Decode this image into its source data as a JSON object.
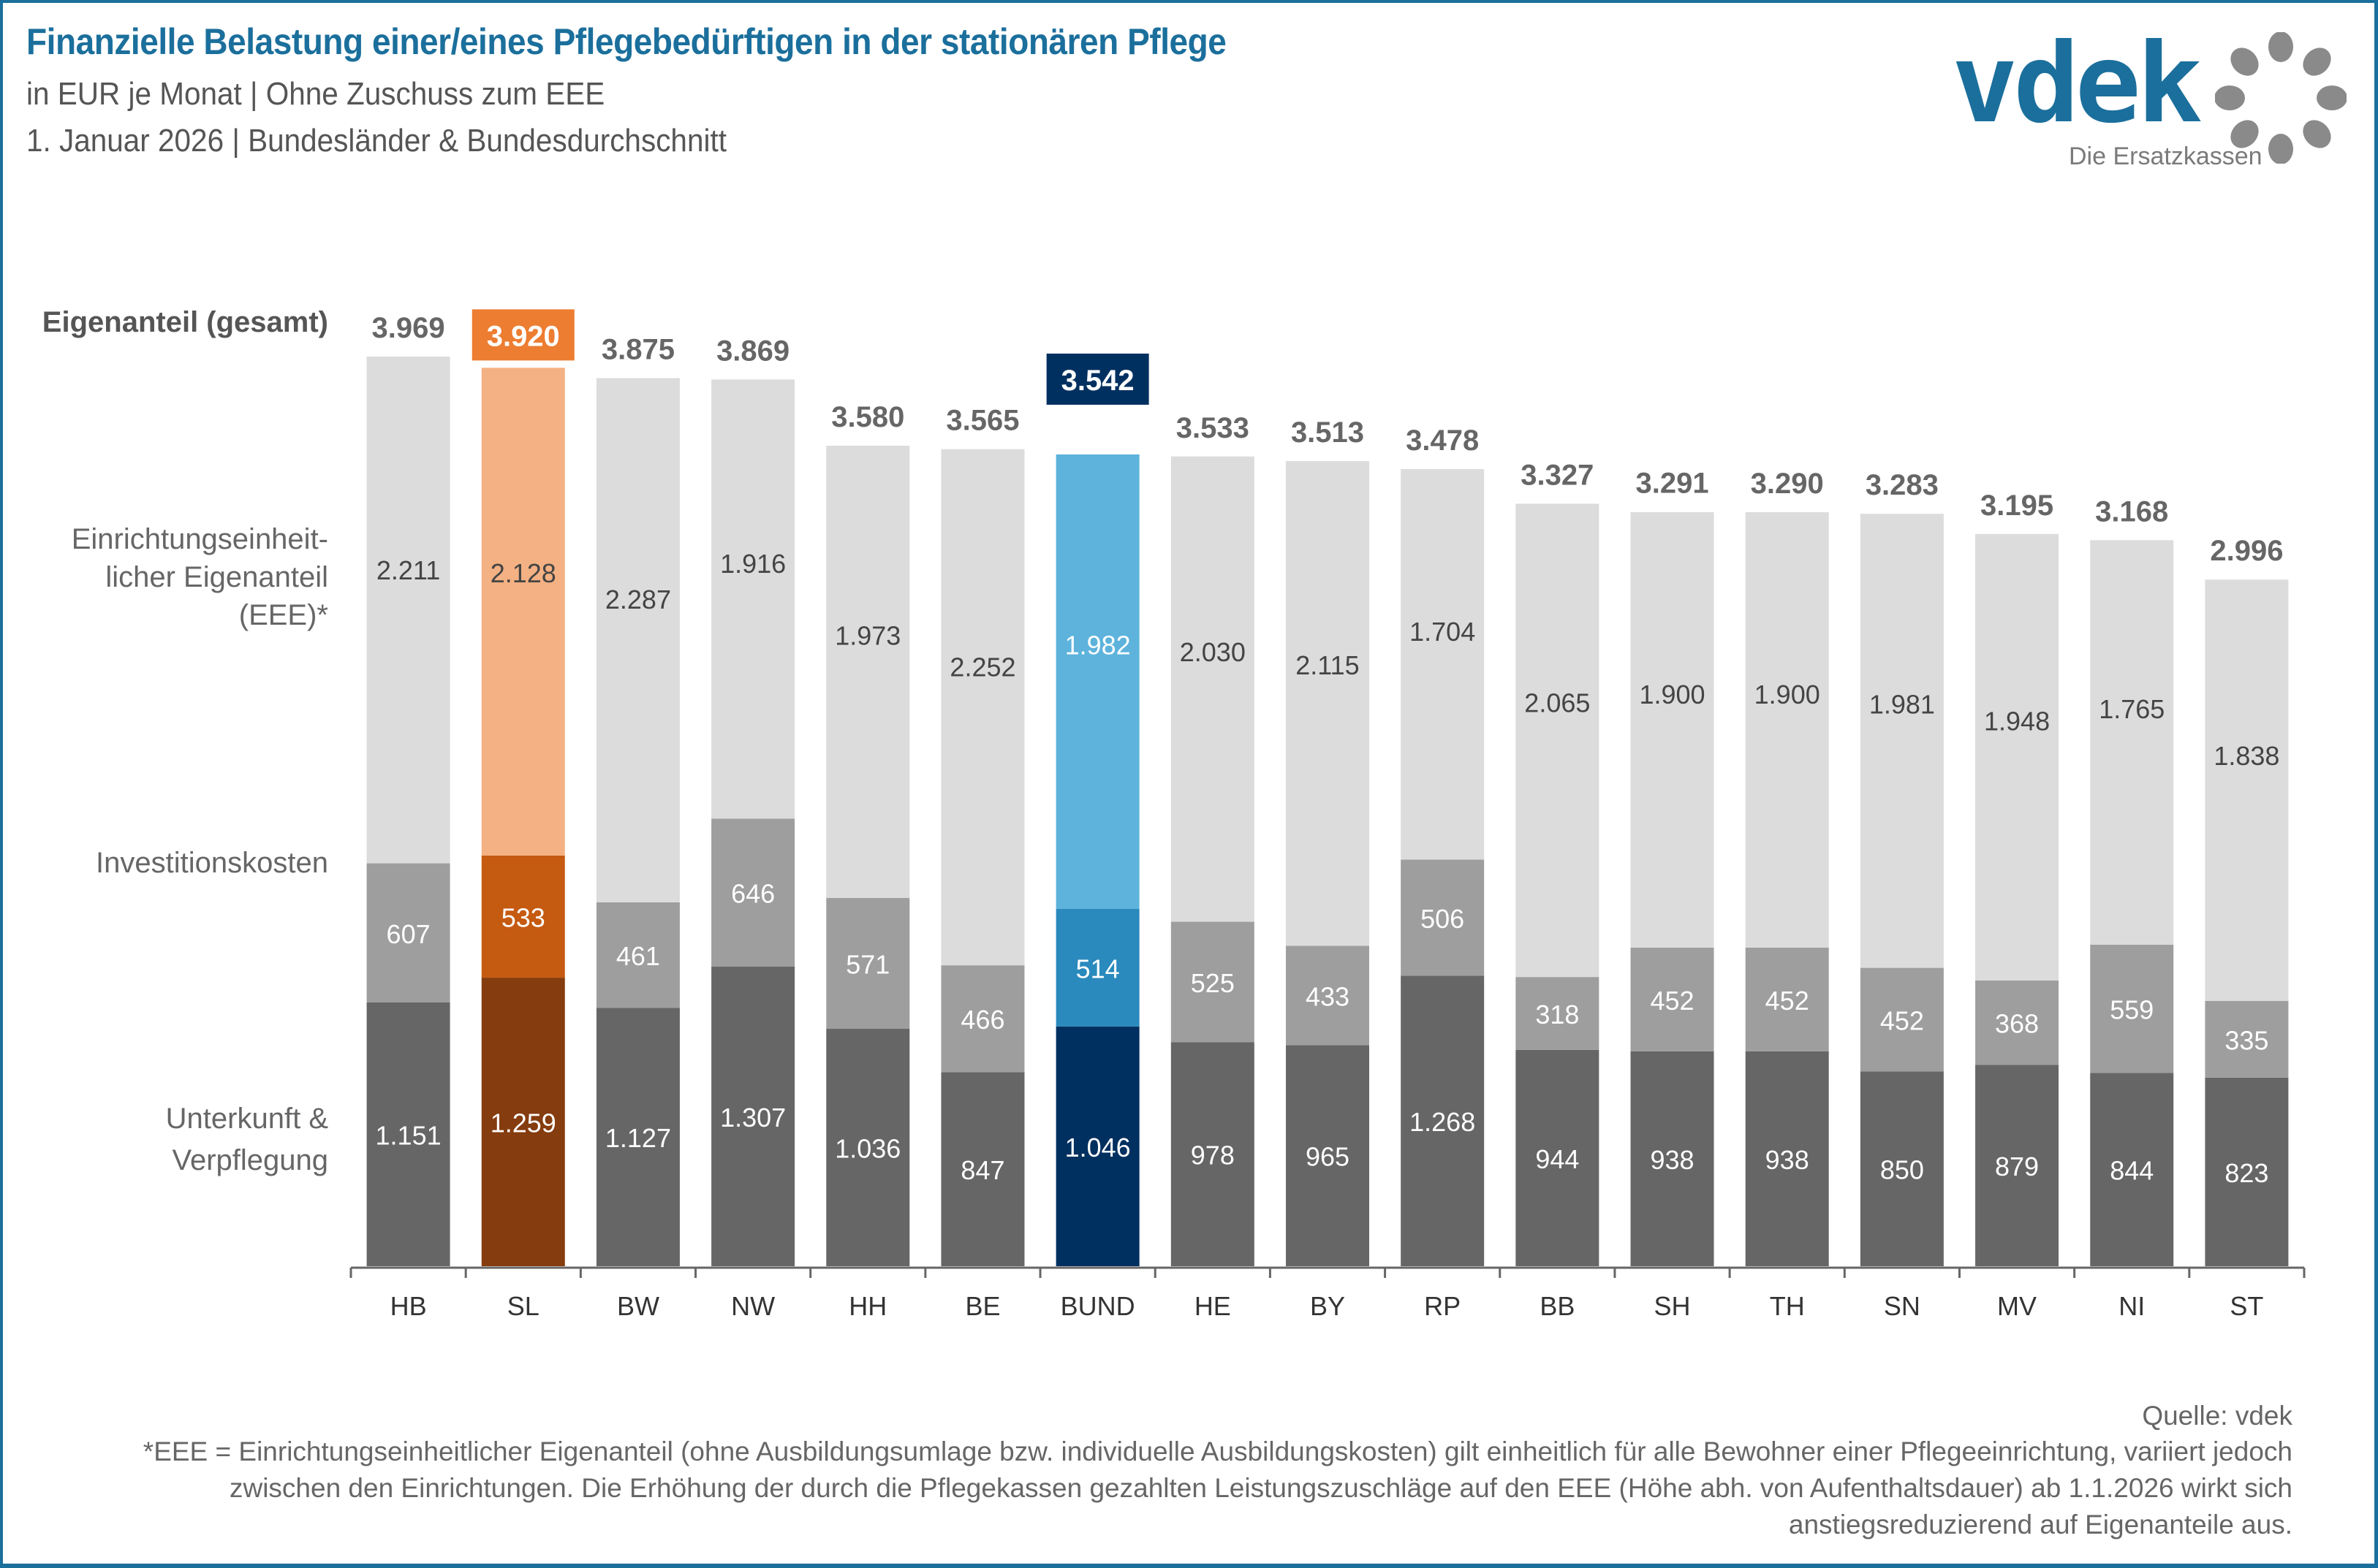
{
  "header": {
    "title": "Finanzielle Belastung einer/eines Pflegebedürftigen in der stationären Pflege",
    "subtitle_1": "in EUR je Monat | Ohne Zuschuss zum EEE",
    "subtitle_2": "1. Januar 2026 | Bundesländer & Bundesdurchschnitt"
  },
  "logo": {
    "wordmark": "vdek",
    "tagline": "Die Ersatzkassen",
    "icon": "ring-of-dots-icon"
  },
  "row_labels": {
    "total": "Eigenanteil (gesamt)",
    "eee_line1": "Einrichtungseinheit-",
    "eee_line2": "licher Eigenanteil",
    "eee_line3": "(EEE)*",
    "invest": "Investitionskosten",
    "uv_line1": "Unterkunft &",
    "uv_line2": "Verpflegung"
  },
  "colors": {
    "brand": "#1b6f9c",
    "uv": "#666666",
    "invest": "#9e9e9e",
    "eee": "#dcdcdc",
    "highlight_sl": {
      "uv": "#853c0e",
      "invest": "#c55a11",
      "eee": "#f4b183",
      "total_box": "#ed7d31"
    },
    "highlight_bund": {
      "uv": "#003060",
      "invest": "#2a8abd",
      "eee": "#5db3dc",
      "total_box": "#003060"
    }
  },
  "chart_data": {
    "type": "bar",
    "stacked": true,
    "title": "Finanzielle Belastung einer/eines Pflegebedürftigen in der stationären Pflege",
    "xlabel": "",
    "ylabel": "EUR je Monat",
    "ylim": [
      0,
      4000
    ],
    "grid": false,
    "categories": [
      "HB",
      "SL",
      "BW",
      "NW",
      "HH",
      "BE",
      "BUND",
      "HE",
      "BY",
      "RP",
      "BB",
      "SH",
      "TH",
      "SN",
      "MV",
      "NI",
      "ST"
    ],
    "highlight": {
      "SL": "orange",
      "BUND": "blue"
    },
    "series": [
      {
        "name": "Unterkunft & Verpflegung",
        "values": [
          1151,
          1259,
          1127,
          1307,
          1036,
          847,
          1046,
          978,
          965,
          1268,
          944,
          938,
          938,
          850,
          879,
          844,
          823
        ],
        "labels": [
          "1.151",
          "1.259",
          "1.127",
          "1.307",
          "1.036",
          "847",
          "1.046",
          "978",
          "965",
          "1.268",
          "944",
          "938",
          "938",
          "850",
          "879",
          "844",
          "823"
        ]
      },
      {
        "name": "Investitionskosten",
        "values": [
          607,
          533,
          461,
          646,
          571,
          466,
          514,
          525,
          433,
          506,
          318,
          452,
          452,
          452,
          368,
          559,
          335
        ],
        "labels": [
          "607",
          "533",
          "461",
          "646",
          "571",
          "466",
          "514",
          "525",
          "433",
          "506",
          "318",
          "452",
          "452",
          "452",
          "368",
          "559",
          "335"
        ]
      },
      {
        "name": "Einrichtungseinheitlicher Eigenanteil (EEE)*",
        "values": [
          2211,
          2128,
          2287,
          1916,
          1973,
          2252,
          1982,
          2030,
          2115,
          1704,
          2065,
          1900,
          1900,
          1981,
          1948,
          1765,
          1838
        ],
        "labels": [
          "2.211",
          "2.128",
          "2.287",
          "1.916",
          "1.973",
          "2.252",
          "1.982",
          "2.030",
          "2.115",
          "1.704",
          "2.065",
          "1.900",
          "1.900",
          "1.981",
          "1.948",
          "1.765",
          "1.838"
        ]
      }
    ],
    "totals": [
      3969,
      3920,
      3875,
      3869,
      3580,
      3565,
      3542,
      3533,
      3513,
      3478,
      3327,
      3291,
      3290,
      3283,
      3195,
      3168,
      2996
    ],
    "total_labels": [
      "3.969",
      "3.920",
      "3.875",
      "3.869",
      "3.580",
      "3.565",
      "3.542",
      "3.533",
      "3.513",
      "3.478",
      "3.327",
      "3.291",
      "3.290",
      "3.283",
      "3.195",
      "3.168",
      "2.996"
    ]
  },
  "footer": {
    "source": "Quelle: vdek",
    "note": "*EEE = Einrichtungseinheitlicher  Eigenanteil (ohne Ausbildungsumlage bzw. individuelle Ausbildungskosten) gilt einheitlich für alle Bewohner einer Pflegeeinrichtung, variiert jedoch zwischen den Einrichtungen. Die Erhöhung der durch die Pflegekassen gezahlten Leistungszuschläge auf den EEE (Höhe abh. von Aufenthaltsdauer) ab 1.1.2026 wirkt sich anstiegsreduzierend auf Eigenanteile aus."
  }
}
